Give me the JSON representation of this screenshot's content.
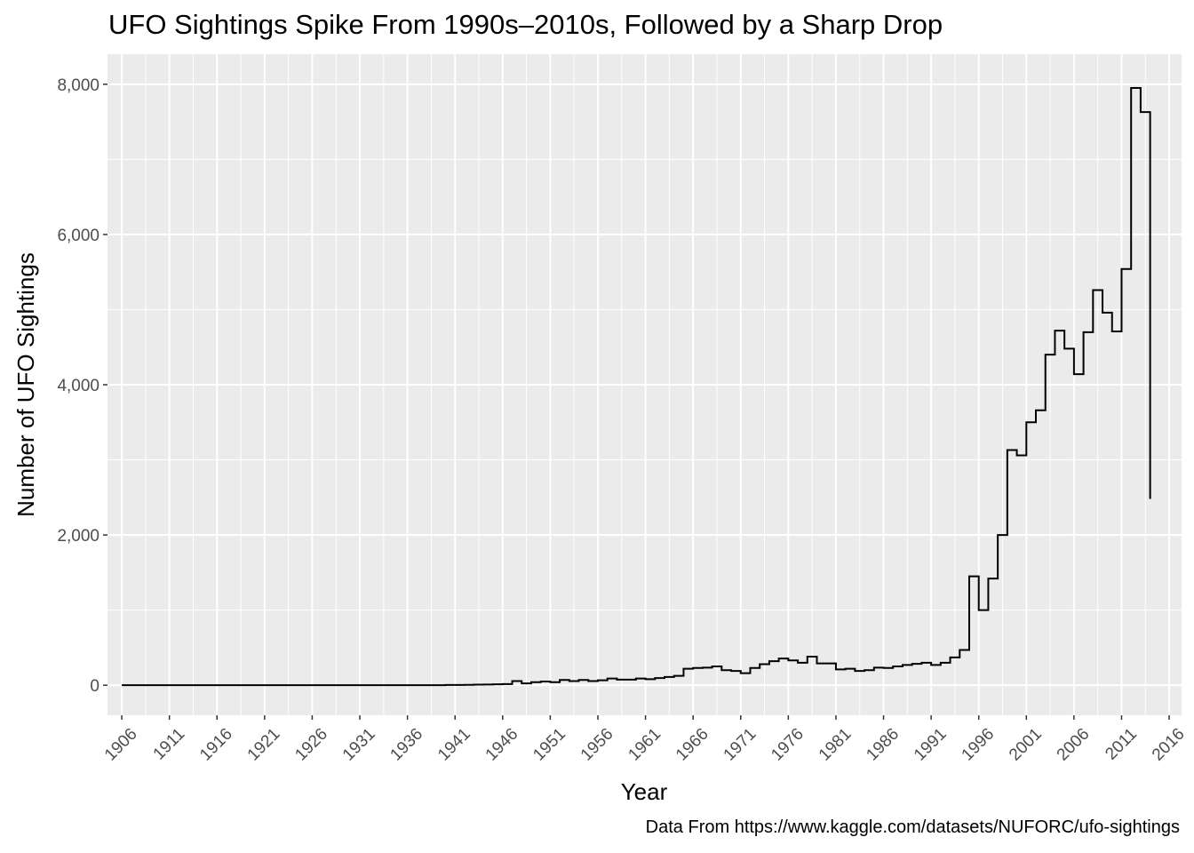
{
  "chart_data": {
    "type": "line",
    "step": true,
    "title": "UFO Sightings Spike From 1990s–2010s, Followed by a Sharp Drop",
    "caption": "Data From https://www.kaggle.com/datasets/NUFORC/ufo-sightings",
    "xlabel": "Year",
    "ylabel": "Number of UFO Sightings",
    "xlim": [
      1904.5,
      2017.3
    ],
    "ylim": [
      -400,
      8400
    ],
    "x_ticks": [
      1906,
      1911,
      1916,
      1921,
      1926,
      1931,
      1936,
      1941,
      1946,
      1951,
      1956,
      1961,
      1966,
      1971,
      1976,
      1981,
      1986,
      1991,
      1996,
      2001,
      2006,
      2011,
      2016
    ],
    "x_tick_labels": [
      "1906",
      "1911",
      "1916",
      "1921",
      "1926",
      "1931",
      "1936",
      "1941",
      "1946",
      "1951",
      "1956",
      "1961",
      "1966",
      "1971",
      "1976",
      "1981",
      "1986",
      "1991",
      "1996",
      "2001",
      "2006",
      "2011",
      "2016"
    ],
    "y_ticks": [
      0,
      2000,
      4000,
      6000,
      8000
    ],
    "y_tick_labels": [
      "0",
      "2,000",
      "4,000",
      "6,000",
      "8,000"
    ],
    "grid": true,
    "series": [
      {
        "x": [
          1906,
          1907,
          1908,
          1909,
          1910,
          1911,
          1912,
          1913,
          1914,
          1915,
          1916,
          1917,
          1918,
          1919,
          1920,
          1921,
          1922,
          1923,
          1924,
          1925,
          1926,
          1927,
          1928,
          1929,
          1930,
          1931,
          1932,
          1933,
          1934,
          1935,
          1936,
          1937,
          1938,
          1939,
          1940,
          1941,
          1942,
          1943,
          1944,
          1945,
          1946,
          1947,
          1948,
          1949,
          1950,
          1951,
          1952,
          1953,
          1954,
          1955,
          1956,
          1957,
          1958,
          1959,
          1960,
          1961,
          1962,
          1963,
          1964,
          1965,
          1966,
          1967,
          1968,
          1969,
          1970,
          1971,
          1972,
          1973,
          1974,
          1975,
          1976,
          1977,
          1978,
          1979,
          1980,
          1981,
          1982,
          1983,
          1984,
          1985,
          1986,
          1987,
          1988,
          1989,
          1990,
          1991,
          1992,
          1993,
          1994,
          1995,
          1996,
          1997,
          1998,
          1999,
          2000,
          2001,
          2002,
          2003,
          2004,
          2005,
          2006,
          2007,
          2008,
          2009,
          2010,
          2011,
          2012,
          2013,
          2014
        ],
        "values": [
          1,
          1,
          1,
          1,
          1,
          1,
          1,
          1,
          1,
          1,
          1,
          1,
          1,
          1,
          1,
          1,
          1,
          1,
          1,
          1,
          1,
          1,
          1,
          1,
          1,
          1,
          1,
          1,
          1,
          1,
          1,
          1,
          1,
          1,
          3,
          3,
          5,
          8,
          10,
          12,
          15,
          55,
          25,
          40,
          50,
          40,
          70,
          55,
          70,
          55,
          65,
          90,
          75,
          75,
          90,
          80,
          95,
          110,
          125,
          220,
          230,
          235,
          250,
          200,
          190,
          160,
          230,
          280,
          320,
          355,
          330,
          300,
          380,
          290,
          290,
          210,
          220,
          190,
          200,
          235,
          230,
          250,
          270,
          285,
          300,
          270,
          300,
          370,
          470,
          1450,
          1000,
          1420,
          2000,
          3130,
          3060,
          3500,
          3660,
          4400,
          4720,
          4480,
          4140,
          4700,
          5260,
          4960,
          4710,
          5540,
          7950,
          7630,
          2480
        ]
      }
    ]
  }
}
